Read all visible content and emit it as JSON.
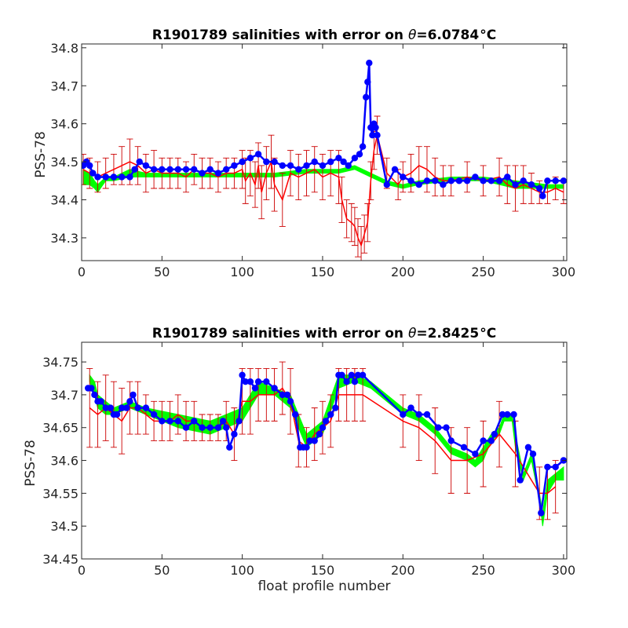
{
  "colors": {
    "envelope": "#00ff00",
    "raw": "#ff0000",
    "errorbar": "#cc0000",
    "calibrated": "#0000ff",
    "axis": "#262626"
  },
  "chart_data": [
    {
      "type": "line",
      "title_prefix": "R1901789 salinities with error on ",
      "title_theta": "θ",
      "title_value": "=6.0784",
      "title_unit": "°C",
      "xlabel": "",
      "ylabel": "PSS-78",
      "xlim": [
        0,
        302
      ],
      "ylim": [
        34.24,
        34.81
      ],
      "xticks": [
        0,
        50,
        100,
        150,
        200,
        250,
        300
      ],
      "yticks": [
        34.3,
        34.4,
        34.5,
        34.6,
        34.7,
        34.8
      ],
      "legend": "none",
      "grid": false,
      "series": [
        {
          "role": "envelope",
          "x": [
            1,
            5,
            8,
            10,
            15,
            20,
            30,
            40,
            60,
            80,
            100,
            120,
            140,
            160,
            170,
            180,
            190,
            200,
            210,
            230,
            250,
            270,
            290,
            300
          ],
          "lower": [
            34.44,
            34.44,
            34.43,
            34.42,
            34.45,
            34.45,
            34.46,
            34.46,
            34.46,
            34.46,
            34.46,
            34.46,
            34.47,
            34.47,
            34.48,
            34.46,
            34.44,
            34.43,
            34.44,
            34.45,
            34.45,
            34.43,
            34.43,
            34.43
          ],
          "upper": [
            34.48,
            34.47,
            34.45,
            34.44,
            34.46,
            34.46,
            34.48,
            34.47,
            34.47,
            34.47,
            34.47,
            34.47,
            34.48,
            34.48,
            34.49,
            34.47,
            34.45,
            34.44,
            34.45,
            34.46,
            34.46,
            34.45,
            34.44,
            34.44
          ]
        },
        {
          "role": "raw",
          "x": [
            1,
            5,
            10,
            15,
            20,
            25,
            30,
            35,
            40,
            45,
            50,
            55,
            60,
            65,
            70,
            75,
            80,
            85,
            90,
            95,
            100,
            102,
            105,
            108,
            110,
            112,
            115,
            118,
            120,
            125,
            130,
            135,
            140,
            145,
            150,
            155,
            160,
            162,
            165,
            168,
            170,
            172,
            174,
            176,
            178,
            180,
            182,
            184,
            190,
            197,
            200,
            205,
            210,
            215,
            220,
            225,
            230,
            240,
            250,
            260,
            265,
            270,
            275,
            280,
            285,
            290,
            295,
            300
          ],
          "y": [
            34.48,
            34.47,
            34.46,
            34.47,
            34.48,
            34.49,
            34.5,
            34.49,
            34.47,
            34.48,
            34.47,
            34.47,
            34.47,
            34.46,
            34.48,
            34.47,
            34.47,
            34.46,
            34.47,
            34.47,
            34.48,
            34.45,
            34.47,
            34.44,
            34.49,
            34.42,
            34.47,
            34.5,
            34.44,
            34.4,
            34.47,
            34.46,
            34.47,
            34.48,
            34.46,
            34.47,
            34.46,
            34.4,
            34.35,
            34.34,
            34.33,
            34.3,
            34.28,
            34.31,
            34.34,
            34.45,
            34.53,
            34.57,
            34.47,
            34.44,
            34.46,
            34.47,
            34.49,
            34.48,
            34.46,
            34.45,
            34.45,
            34.46,
            34.45,
            34.46,
            34.44,
            34.43,
            34.44,
            34.43,
            34.42,
            34.42,
            34.43,
            34.42
          ],
          "err": [
            0.04,
            0.04,
            0.04,
            0.04,
            0.04,
            0.05,
            0.06,
            0.05,
            0.05,
            0.05,
            0.04,
            0.04,
            0.04,
            0.04,
            0.04,
            0.04,
            0.04,
            0.04,
            0.04,
            0.04,
            0.05,
            0.06,
            0.06,
            0.06,
            0.06,
            0.07,
            0.07,
            0.07,
            0.07,
            0.07,
            0.06,
            0.06,
            0.06,
            0.06,
            0.06,
            0.06,
            0.07,
            0.06,
            0.05,
            0.05,
            0.05,
            0.05,
            0.05,
            0.05,
            0.05,
            0.05,
            0.05,
            0.05,
            0.04,
            0.04,
            0.04,
            0.05,
            0.05,
            0.06,
            0.05,
            0.04,
            0.04,
            0.04,
            0.04,
            0.05,
            0.05,
            0.06,
            0.05,
            0.04,
            0.03,
            0.03,
            0.03,
            0.03
          ]
        },
        {
          "role": "calibrated",
          "x": [
            1,
            3,
            5,
            7,
            10,
            15,
            20,
            25,
            30,
            33,
            36,
            40,
            45,
            50,
            55,
            60,
            65,
            70,
            75,
            80,
            85,
            90,
            95,
            100,
            105,
            110,
            115,
            120,
            125,
            130,
            135,
            140,
            145,
            150,
            155,
            160,
            163,
            166,
            170,
            173,
            175,
            177,
            178,
            179,
            180,
            181,
            182,
            183,
            184,
            190,
            195,
            200,
            205,
            210,
            215,
            220,
            225,
            230,
            235,
            240,
            245,
            250,
            255,
            260,
            265,
            270,
            275,
            280,
            285,
            287,
            290,
            295,
            300
          ],
          "y": [
            34.49,
            34.5,
            34.49,
            34.47,
            34.46,
            34.46,
            34.46,
            34.46,
            34.46,
            34.48,
            34.5,
            34.49,
            34.48,
            34.48,
            34.48,
            34.48,
            34.48,
            34.48,
            34.47,
            34.48,
            34.47,
            34.48,
            34.49,
            34.5,
            34.51,
            34.52,
            34.5,
            34.5,
            34.49,
            34.49,
            34.48,
            34.49,
            34.5,
            34.49,
            34.5,
            34.51,
            34.5,
            34.49,
            34.51,
            34.52,
            34.54,
            34.67,
            34.71,
            34.76,
            34.59,
            34.57,
            34.6,
            34.59,
            34.57,
            34.44,
            34.48,
            34.46,
            34.45,
            34.44,
            34.45,
            34.45,
            34.44,
            34.45,
            34.45,
            34.45,
            34.46,
            34.45,
            34.45,
            34.45,
            34.46,
            34.44,
            34.45,
            34.44,
            34.43,
            34.41,
            34.45,
            34.45,
            34.45
          ]
        }
      ]
    },
    {
      "type": "line",
      "title_prefix": "R1901789 salinities with error on ",
      "title_theta": "θ",
      "title_value": "=2.8425",
      "title_unit": "°C",
      "xlabel": "float profile number",
      "ylabel": "PSS-78",
      "xlim": [
        0,
        302
      ],
      "ylim": [
        34.45,
        34.78
      ],
      "xticks": [
        0,
        50,
        100,
        150,
        200,
        250,
        300
      ],
      "yticks": [
        34.45,
        34.5,
        34.55,
        34.6,
        34.65,
        34.7,
        34.75
      ],
      "legend": "none",
      "grid": false,
      "series": [
        {
          "role": "envelope",
          "x": [
            5,
            8,
            10,
            15,
            20,
            30,
            40,
            60,
            80,
            100,
            110,
            120,
            130,
            140,
            150,
            160,
            170,
            180,
            190,
            200,
            210,
            220,
            230,
            240,
            245,
            250,
            255,
            260,
            263,
            268,
            270,
            275,
            280,
            285,
            287,
            290,
            295,
            300
          ],
          "lower": [
            34.72,
            34.7,
            34.68,
            34.67,
            34.67,
            34.68,
            34.67,
            34.65,
            34.64,
            34.66,
            34.7,
            34.7,
            34.68,
            34.62,
            34.64,
            34.71,
            34.72,
            34.71,
            34.69,
            34.67,
            34.66,
            34.64,
            34.61,
            34.6,
            34.59,
            34.6,
            34.63,
            34.64,
            34.66,
            34.66,
            34.62,
            34.57,
            34.6,
            34.54,
            34.5,
            34.55,
            34.57,
            34.57
          ],
          "upper": [
            34.73,
            34.72,
            34.7,
            34.69,
            34.68,
            34.69,
            34.68,
            34.67,
            34.66,
            34.68,
            34.72,
            34.71,
            34.7,
            34.64,
            34.66,
            34.73,
            34.73,
            34.72,
            34.7,
            34.68,
            34.67,
            34.65,
            34.62,
            34.61,
            34.6,
            34.62,
            34.64,
            34.65,
            34.67,
            34.67,
            34.64,
            34.58,
            34.61,
            34.55,
            34.52,
            34.57,
            34.58,
            34.59
          ]
        },
        {
          "role": "raw",
          "x": [
            5,
            10,
            15,
            20,
            25,
            30,
            35,
            40,
            45,
            50,
            55,
            60,
            65,
            70,
            75,
            80,
            85,
            90,
            95,
            100,
            105,
            110,
            115,
            120,
            125,
            130,
            135,
            140,
            145,
            150,
            155,
            160,
            165,
            170,
            175,
            200,
            210,
            220,
            230,
            240,
            250,
            260,
            270,
            285,
            290,
            295
          ],
          "y": [
            34.68,
            34.67,
            34.68,
            34.67,
            34.66,
            34.68,
            34.68,
            34.67,
            34.66,
            34.66,
            34.66,
            34.67,
            34.66,
            34.66,
            34.65,
            34.65,
            34.65,
            34.66,
            34.64,
            34.69,
            34.69,
            34.7,
            34.7,
            34.7,
            34.71,
            34.69,
            34.63,
            34.62,
            34.64,
            34.65,
            34.66,
            34.7,
            34.7,
            34.7,
            34.7,
            34.66,
            34.65,
            34.63,
            34.6,
            34.6,
            34.61,
            34.64,
            34.61,
            34.55,
            34.55,
            34.56
          ],
          "err": [
            0.06,
            0.05,
            0.05,
            0.05,
            0.05,
            0.04,
            0.04,
            0.03,
            0.03,
            0.03,
            0.03,
            0.03,
            0.03,
            0.03,
            0.02,
            0.02,
            0.02,
            0.03,
            0.04,
            0.05,
            0.05,
            0.04,
            0.04,
            0.04,
            0.04,
            0.05,
            0.04,
            0.03,
            0.04,
            0.04,
            0.04,
            0.04,
            0.04,
            0.04,
            0.04,
            0.04,
            0.05,
            0.05,
            0.05,
            0.05,
            0.05,
            0.05,
            0.05,
            0.04,
            0.04,
            0.04
          ]
        },
        {
          "role": "calibrated",
          "x": [
            4,
            6,
            8,
            10,
            12,
            15,
            18,
            20,
            22,
            25,
            28,
            30,
            32,
            35,
            40,
            45,
            50,
            55,
            60,
            65,
            70,
            75,
            80,
            85,
            88,
            90,
            92,
            95,
            98,
            100,
            102,
            105,
            108,
            110,
            115,
            120,
            125,
            128,
            130,
            133,
            136,
            138,
            140,
            142,
            145,
            148,
            150,
            152,
            155,
            158,
            160,
            162,
            165,
            168,
            170,
            172,
            175,
            200,
            205,
            210,
            215,
            222,
            227,
            230,
            238,
            245,
            250,
            255,
            257,
            262,
            265,
            269,
            273,
            278,
            281,
            286,
            290,
            295,
            300
          ],
          "y": [
            34.71,
            34.71,
            34.7,
            34.69,
            34.69,
            34.68,
            34.68,
            34.67,
            34.67,
            34.68,
            34.68,
            34.69,
            34.7,
            34.68,
            34.68,
            34.67,
            34.66,
            34.66,
            34.66,
            34.65,
            34.66,
            34.65,
            34.65,
            34.65,
            34.66,
            34.65,
            34.62,
            34.64,
            34.66,
            34.73,
            34.72,
            34.72,
            34.71,
            34.72,
            34.72,
            34.71,
            34.7,
            34.7,
            34.69,
            34.67,
            34.62,
            34.62,
            34.62,
            34.63,
            34.63,
            34.64,
            34.65,
            34.66,
            34.67,
            34.68,
            34.73,
            34.73,
            34.72,
            34.73,
            34.72,
            34.73,
            34.73,
            34.67,
            34.68,
            34.67,
            34.67,
            34.65,
            34.65,
            34.63,
            34.62,
            34.61,
            34.63,
            34.63,
            34.64,
            34.67,
            34.67,
            34.67,
            34.57,
            34.62,
            34.61,
            34.52,
            34.59,
            34.59,
            34.6
          ]
        }
      ]
    }
  ]
}
